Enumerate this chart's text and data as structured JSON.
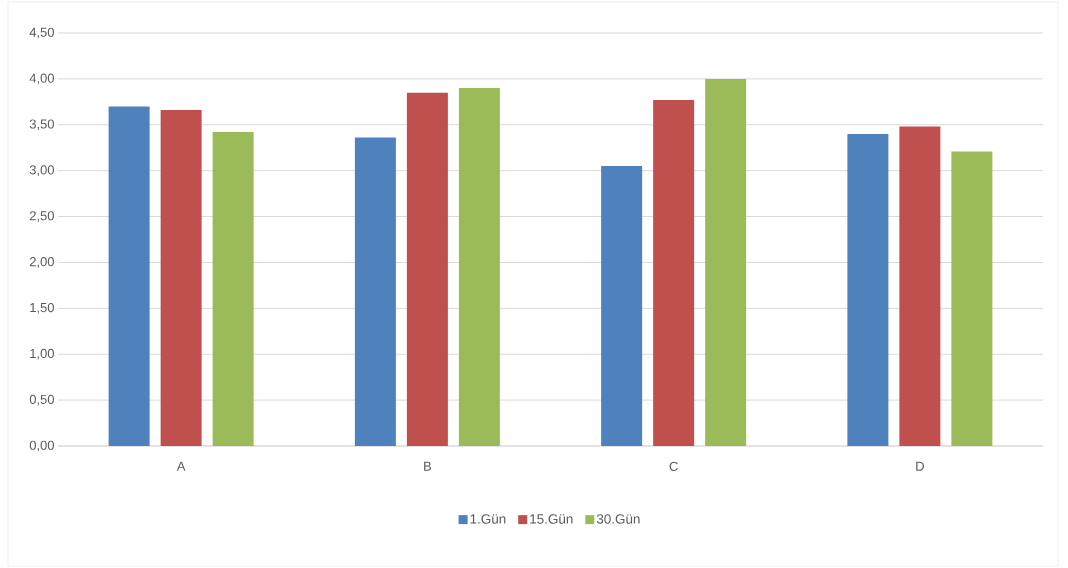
{
  "chart_data": {
    "type": "bar",
    "categories": [
      "A",
      "B",
      "C",
      "D"
    ],
    "series": [
      {
        "name": "1.Gün",
        "color": "#4f81bd",
        "values": [
          3.7,
          3.36,
          3.05,
          3.4
        ]
      },
      {
        "name": "15.Gün",
        "color": "#c0504d",
        "values": [
          3.66,
          3.85,
          3.77,
          3.48
        ]
      },
      {
        "name": "30.Gün",
        "color": "#9bbb59",
        "values": [
          3.42,
          3.9,
          4.0,
          3.21
        ]
      }
    ],
    "ylim": [
      0,
      4.5
    ],
    "yticks": [
      {
        "value": 0,
        "label": "0,00"
      },
      {
        "value": 0.5,
        "label": "0,50"
      },
      {
        "value": 1,
        "label": "1,00"
      },
      {
        "value": 1.5,
        "label": "1,50"
      },
      {
        "value": 2,
        "label": "2,00"
      },
      {
        "value": 2.5,
        "label": "2,50"
      },
      {
        "value": 3,
        "label": "3,00"
      },
      {
        "value": 3.5,
        "label": "3,50"
      },
      {
        "value": 4,
        "label": "4,00"
      },
      {
        "value": 4.5,
        "label": "4,50"
      }
    ],
    "grid": "y",
    "legend": "bottom"
  }
}
